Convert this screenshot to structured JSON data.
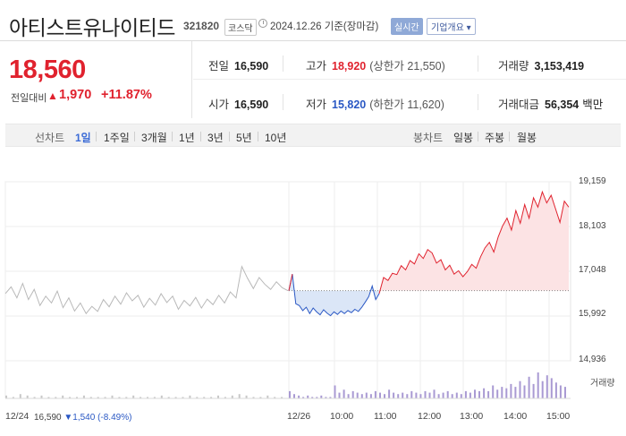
{
  "header": {
    "name": "아티스트유나이티드",
    "code": "321820",
    "market": "코스닥",
    "date_text": "2024.12.26  기준(장마감)",
    "realtime_label": "실시간",
    "corp_label": "기업개요 ▾"
  },
  "price": {
    "current": "18,560",
    "diff_label": "전일대비",
    "diff_value": "1,970",
    "diff_pct": "+11.87%"
  },
  "stats": {
    "prev_label": "전일",
    "prev_value": "16,590",
    "high_label": "고가",
    "high_value": "18,920",
    "high_sub": "(상한가 21,550)",
    "vol_label": "거래량",
    "vol_value": "3,153,419",
    "open_label": "시가",
    "open_value": "16,590",
    "low_label": "저가",
    "low_value": "15,820",
    "low_sub": "(하한가 11,620)",
    "amt_label": "거래대금",
    "amt_value": "56,354",
    "amt_unit": "백만"
  },
  "tabs": {
    "line_label": "선차트",
    "line_items": [
      "1일",
      "1주일",
      "3개월",
      "1년",
      "3년",
      "5년",
      "10년"
    ],
    "candle_label": "봉차트",
    "candle_items": [
      "일봉",
      "주봉",
      "월봉"
    ]
  },
  "colors": {
    "up": "#e0222e",
    "down": "#2a58c4",
    "prev_day": "#b8b8b8"
  },
  "chart_data": {
    "type": "line",
    "y_ticks": [
      "19,159",
      "18,103",
      "17,048",
      "15,992",
      "14,936"
    ],
    "ylim": [
      14936,
      19159
    ],
    "baseline": 16590,
    "x_ticks": [
      "12/24",
      "12/26",
      "10:00",
      "11:00",
      "12:00",
      "13:00",
      "14:00",
      "15:00"
    ],
    "volume_label": "거래량",
    "grid": true,
    "series": [
      {
        "values": [
          16520,
          16680,
          16420,
          16760,
          16380,
          16620,
          16240,
          16460,
          16300,
          16580,
          16190,
          16420,
          16110,
          16300,
          16050,
          16220,
          16100,
          16380,
          16210,
          16460,
          16270,
          16540,
          16350,
          16480,
          16200,
          16410,
          16250,
          16520,
          16310,
          16460,
          16150,
          16360,
          16230,
          16430,
          16180,
          16390,
          16260,
          16480,
          16300,
          16560,
          16420,
          17160,
          16880,
          16640,
          16900,
          16740,
          16620,
          16800,
          16660,
          16590
        ]
      },
      {
        "values": [
          16590,
          16980,
          16280,
          16240,
          16120,
          16200,
          16050,
          16180,
          16090,
          16020,
          16140,
          16060,
          16000,
          16090,
          16030,
          16110,
          16050,
          16120,
          16070,
          16150,
          16100,
          16200,
          16320,
          16450,
          16700,
          16380,
          16520
        ]
      },
      {
        "values": [
          16520,
          16900,
          16830,
          17000,
          16970,
          17180,
          17080,
          17300,
          17220,
          17460,
          17350,
          17560,
          17480,
          17240,
          17320,
          17080,
          17190,
          16980,
          17060,
          16920,
          17040,
          17210,
          17120,
          17390,
          17600,
          17730,
          17500,
          17860,
          18120,
          18300,
          18020,
          18480,
          18180,
          18620,
          18300,
          18780,
          18560,
          18920,
          18660,
          18840,
          18520,
          18200,
          18700,
          18560
        ]
      }
    ],
    "volume": [
      2,
      1,
      3,
      2,
      1,
      2,
      1,
      1,
      2,
      1,
      1,
      2,
      1,
      1,
      1,
      2,
      1,
      1,
      2,
      1,
      1,
      1,
      2,
      1,
      1,
      1,
      2,
      1,
      1,
      1,
      2,
      1,
      2,
      3,
      2,
      1,
      1,
      2,
      1,
      1,
      5,
      3,
      2,
      1,
      2,
      1,
      1,
      2,
      1,
      1,
      9,
      4,
      6,
      3,
      5,
      4,
      3,
      4,
      3,
      5,
      4,
      3,
      6,
      4,
      3,
      4,
      3,
      5,
      4,
      3,
      5,
      4,
      6,
      3,
      4,
      5,
      3,
      4,
      3,
      5,
      4,
      6,
      5,
      7,
      5,
      9,
      6,
      8,
      7,
      10,
      8,
      12,
      9,
      15,
      10,
      18,
      12,
      16,
      14,
      11,
      9,
      8
    ]
  }
}
